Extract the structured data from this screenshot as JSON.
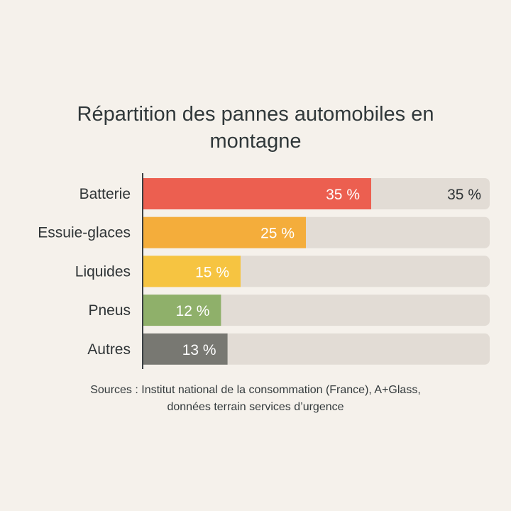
{
  "title": "Répartition des pannes automobiles en montagne",
  "source": {
    "line1": "Sources : Institut national de la consommation (France), A+Glass,",
    "line2": "données terrain services d’urgence"
  },
  "chart_data": {
    "type": "bar",
    "orientation": "horizontal",
    "title": "Répartition des pannes automobiles en montagne",
    "xlabel": "",
    "ylabel": "",
    "xlim": [
      0,
      100
    ],
    "grid": false,
    "categories": [
      "Batterie",
      "Essuie-glaces",
      "Liquides",
      "Pneus",
      "Autres"
    ],
    "values": [
      35,
      25,
      15,
      12,
      13
    ],
    "data_labels": [
      "35 %",
      "25 %",
      "15 %",
      "12 %",
      "13 %"
    ],
    "extra_labels": [
      {
        "category": "Batterie",
        "text": "35 %"
      }
    ],
    "colors": [
      "#ec5f50",
      "#f4ad3b",
      "#f6c441",
      "#8fb06a",
      "#787872"
    ],
    "track_color": "#e2dcd5"
  }
}
